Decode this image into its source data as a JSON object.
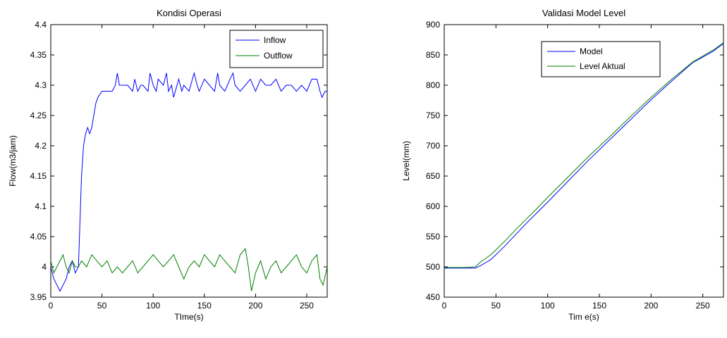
{
  "chart_data": [
    {
      "type": "line",
      "title": "Kondisi Operasi",
      "xlabel": "TIme(s)",
      "ylabel": "Flow(m3/jam)",
      "xlim": [
        0,
        270
      ],
      "ylim": [
        3.95,
        4.4
      ],
      "xticks": [
        "0",
        "50",
        "100",
        "150",
        "200",
        "250"
      ],
      "yticks": [
        "3.95",
        "4",
        "4.05",
        "4.1",
        "4.15",
        "4.2",
        "4.25",
        "4.3",
        "4.35",
        "4.4"
      ],
      "legend_position": "top-right",
      "grid": false,
      "series": [
        {
          "name": "Inflow",
          "color": "#0000ff",
          "x": [
            0,
            3,
            6,
            9,
            12,
            15,
            18,
            21,
            24,
            27,
            28,
            30,
            32,
            34,
            36,
            38,
            40,
            42,
            44,
            46,
            50,
            55,
            60,
            63,
            65,
            67,
            70,
            75,
            80,
            82,
            85,
            88,
            90,
            95,
            97,
            100,
            103,
            105,
            110,
            113,
            115,
            118,
            120,
            125,
            128,
            130,
            135,
            140,
            143,
            145,
            150,
            155,
            160,
            163,
            165,
            170,
            175,
            178,
            180,
            185,
            190,
            195,
            200,
            205,
            210,
            215,
            220,
            225,
            230,
            235,
            240,
            245,
            250,
            255,
            260,
            263,
            265,
            268,
            270
          ],
          "y": [
            4.0,
            3.98,
            3.97,
            3.96,
            3.97,
            3.98,
            4.0,
            4.01,
            3.99,
            4.0,
            4.05,
            4.15,
            4.2,
            4.22,
            4.23,
            4.22,
            4.23,
            4.25,
            4.27,
            4.28,
            4.29,
            4.29,
            4.29,
            4.3,
            4.32,
            4.3,
            4.3,
            4.3,
            4.29,
            4.31,
            4.29,
            4.3,
            4.3,
            4.29,
            4.32,
            4.3,
            4.29,
            4.31,
            4.3,
            4.32,
            4.29,
            4.3,
            4.28,
            4.31,
            4.29,
            4.3,
            4.29,
            4.32,
            4.3,
            4.29,
            4.31,
            4.3,
            4.29,
            4.32,
            4.3,
            4.29,
            4.31,
            4.32,
            4.3,
            4.29,
            4.3,
            4.31,
            4.29,
            4.31,
            4.3,
            4.3,
            4.31,
            4.29,
            4.3,
            4.3,
            4.29,
            4.3,
            4.29,
            4.31,
            4.31,
            4.29,
            4.28,
            4.29,
            4.29
          ]
        },
        {
          "name": "Outflow",
          "color": "#008000",
          "x": [
            0,
            3,
            6,
            9,
            12,
            15,
            18,
            21,
            24,
            27,
            30,
            35,
            40,
            45,
            50,
            55,
            60,
            65,
            70,
            75,
            80,
            85,
            90,
            95,
            100,
            105,
            110,
            115,
            120,
            125,
            130,
            135,
            140,
            145,
            150,
            155,
            160,
            165,
            170,
            175,
            180,
            185,
            190,
            193,
            196,
            200,
            205,
            210,
            215,
            220,
            225,
            230,
            235,
            240,
            245,
            250,
            255,
            260,
            263,
            266,
            270
          ],
          "y": [
            4.01,
            3.99,
            4.0,
            4.01,
            4.02,
            4.0,
            3.99,
            4.01,
            4.0,
            4.0,
            4.01,
            4.0,
            4.02,
            4.01,
            4.0,
            4.01,
            3.99,
            4.0,
            3.99,
            4.0,
            4.01,
            3.99,
            4.0,
            4.01,
            4.02,
            4.01,
            4.0,
            4.01,
            4.02,
            4.0,
            3.98,
            4.0,
            4.01,
            4.0,
            4.02,
            4.01,
            4.0,
            4.02,
            4.01,
            4.0,
            3.99,
            4.02,
            4.03,
            4.0,
            3.96,
            3.99,
            4.01,
            3.98,
            4.0,
            4.01,
            3.99,
            4.0,
            4.01,
            4.02,
            4.0,
            3.99,
            4.01,
            4.02,
            3.98,
            3.97,
            4.0
          ]
        }
      ]
    },
    {
      "type": "line",
      "title": "Validasi Model Level",
      "xlabel": "Tim e(s)",
      "ylabel": "Level(mm)",
      "xlim": [
        0,
        270
      ],
      "ylim": [
        450,
        900
      ],
      "xticks": [
        "0",
        "50",
        "100",
        "150",
        "200",
        "250"
      ],
      "yticks": [
        "450",
        "500",
        "550",
        "600",
        "650",
        "700",
        "750",
        "800",
        "850",
        "900"
      ],
      "legend_position": "top",
      "grid": false,
      "series": [
        {
          "name": "Model",
          "color": "#0000ff",
          "x": [
            0,
            10,
            20,
            30,
            35,
            40,
            45,
            50,
            60,
            70,
            80,
            90,
            100,
            120,
            140,
            160,
            180,
            200,
            220,
            240,
            260,
            270
          ],
          "y": [
            498,
            498,
            498,
            498,
            502,
            507,
            512,
            520,
            537,
            555,
            573,
            590,
            607,
            642,
            677,
            710,
            743,
            776,
            807,
            837,
            856,
            869
          ]
        },
        {
          "name": "Level Aktual",
          "color": "#008000",
          "x": [
            0,
            10,
            20,
            30,
            35,
            40,
            45,
            50,
            60,
            70,
            80,
            90,
            100,
            120,
            140,
            160,
            180,
            200,
            220,
            240,
            260,
            270
          ],
          "y": [
            499,
            499,
            499,
            500,
            508,
            514,
            520,
            528,
            545,
            563,
            580,
            597,
            615,
            649,
            683,
            715,
            748,
            780,
            810,
            838,
            858,
            870
          ]
        }
      ]
    }
  ]
}
